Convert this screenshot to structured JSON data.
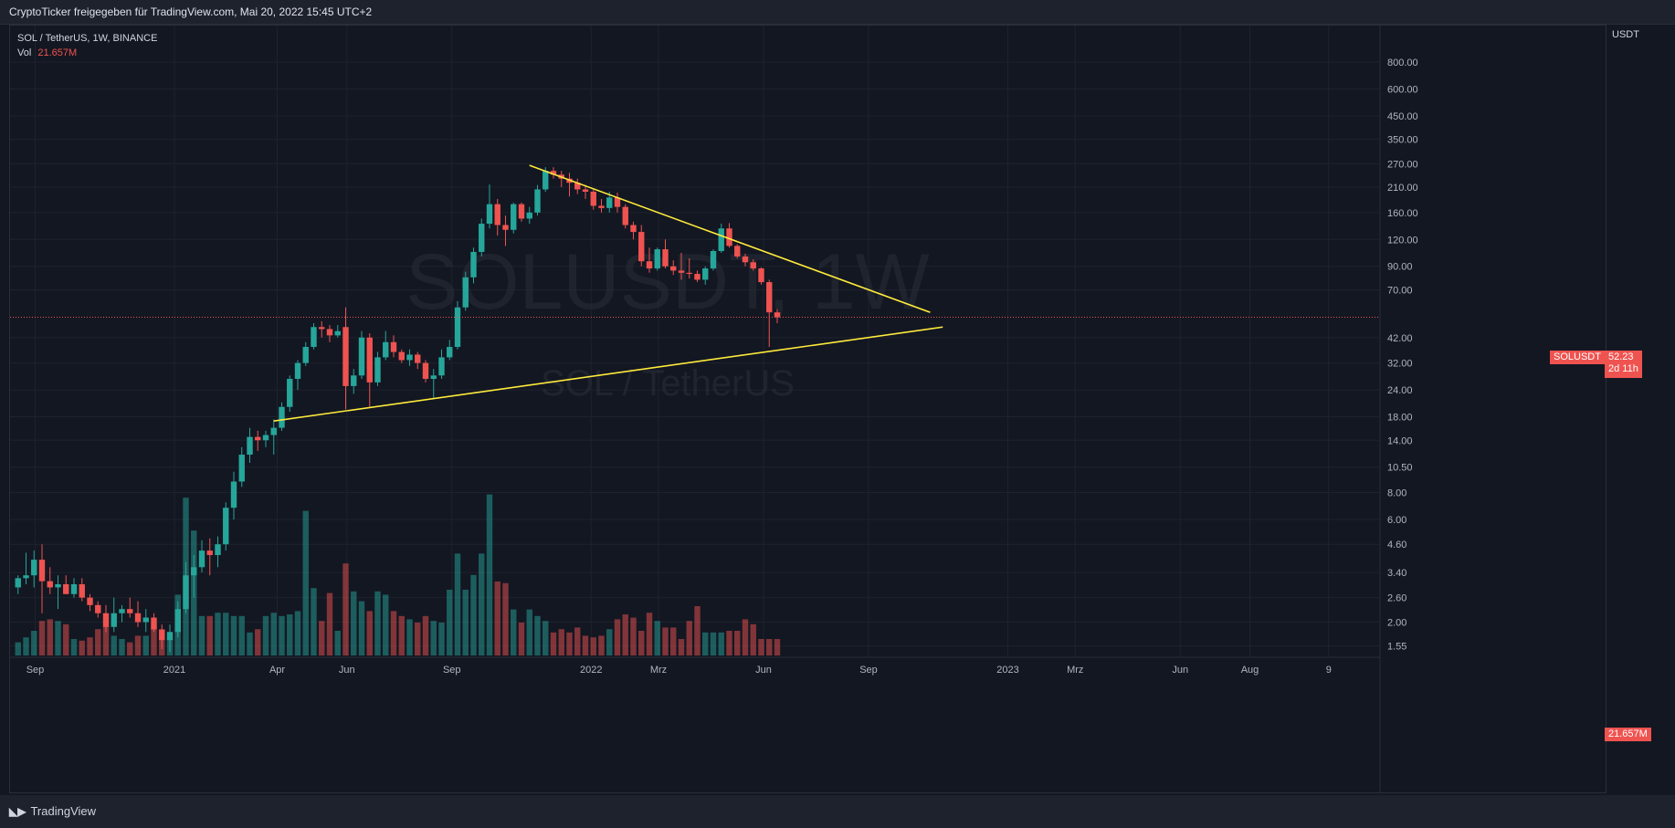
{
  "header": {
    "text": "CryptoTicker freigegeben für TradingView.com, Mai 20, 2022 15:45 UTC+2"
  },
  "legend": {
    "symbol_line": "SOL / TetherUS, 1W, BINANCE",
    "vol_label": "Vol",
    "vol_value": "21.657M"
  },
  "watermark": {
    "symbol": "SOLUSDT, 1W",
    "description": "SOL / TetherUS"
  },
  "price_axis": {
    "unit": "USDT",
    "labels": [
      "800.00",
      "600.00",
      "450.00",
      "350.00",
      "270.00",
      "210.00",
      "160.00",
      "120.00",
      "90.00",
      "70.00",
      "42.00",
      "32.00",
      "24.00",
      "18.00",
      "14.00",
      "10.50",
      "8.00",
      "6.00",
      "4.60",
      "3.40",
      "2.60",
      "2.00",
      "1.55"
    ]
  },
  "time_axis": {
    "labels": [
      "Sep",
      "2021",
      "Apr",
      "Jun",
      "Sep",
      "2022",
      "Mrz",
      "Jun",
      "Sep",
      "2023",
      "Mrz",
      "Jun",
      "Aug",
      "9"
    ]
  },
  "price_tag": {
    "symbol": "SOLUSDT",
    "price": "52.23",
    "countdown": "2d 11h"
  },
  "vol_tag": "21.657M",
  "footer": {
    "brand": "TradingView"
  },
  "colors": {
    "up": "#26a69a",
    "down": "#ef5350",
    "trendline": "#ffeb3b",
    "background": "#131722"
  },
  "chart_data": {
    "type": "candlestick",
    "scale": "log",
    "yrange": [
      1.4,
      900
    ],
    "x_start": "2020-08-10",
    "x_end": "2023-10-30",
    "candles": [
      {
        "t": "2020-08-17",
        "o": 2.9,
        "h": 3.3,
        "l": 2.7,
        "c": 3.2
      },
      {
        "t": "2020-08-24",
        "o": 3.2,
        "h": 4.2,
        "l": 3.0,
        "c": 3.3
      },
      {
        "t": "2020-08-31",
        "o": 3.3,
        "h": 4.3,
        "l": 2.9,
        "c": 3.9
      },
      {
        "t": "2020-09-07",
        "o": 3.9,
        "h": 4.6,
        "l": 2.2,
        "c": 3.1
      },
      {
        "t": "2020-09-14",
        "o": 3.1,
        "h": 3.6,
        "l": 2.7,
        "c": 2.9
      },
      {
        "t": "2020-09-21",
        "o": 2.9,
        "h": 3.3,
        "l": 2.3,
        "c": 3.0
      },
      {
        "t": "2020-09-28",
        "o": 3.0,
        "h": 3.3,
        "l": 2.7,
        "c": 2.7
      },
      {
        "t": "2020-10-05",
        "o": 2.7,
        "h": 3.2,
        "l": 2.6,
        "c": 3.0
      },
      {
        "t": "2020-10-12",
        "o": 3.0,
        "h": 3.2,
        "l": 2.5,
        "c": 2.6
      },
      {
        "t": "2020-10-19",
        "o": 2.6,
        "h": 2.7,
        "l": 2.25,
        "c": 2.4
      },
      {
        "t": "2020-10-26",
        "o": 2.4,
        "h": 2.5,
        "l": 2.1,
        "c": 2.2
      },
      {
        "t": "2020-11-02",
        "o": 2.2,
        "h": 2.4,
        "l": 1.8,
        "c": 1.9
      },
      {
        "t": "2020-11-09",
        "o": 1.9,
        "h": 2.6,
        "l": 1.8,
        "c": 2.2
      },
      {
        "t": "2020-11-16",
        "o": 2.2,
        "h": 2.4,
        "l": 2.0,
        "c": 2.3
      },
      {
        "t": "2020-11-23",
        "o": 2.3,
        "h": 2.6,
        "l": 2.1,
        "c": 2.2
      },
      {
        "t": "2020-11-30",
        "o": 2.2,
        "h": 2.5,
        "l": 1.9,
        "c": 2.0
      },
      {
        "t": "2020-12-07",
        "o": 2.0,
        "h": 2.3,
        "l": 1.8,
        "c": 2.1
      },
      {
        "t": "2020-12-14",
        "o": 2.1,
        "h": 2.2,
        "l": 1.8,
        "c": 1.85
      },
      {
        "t": "2020-12-21",
        "o": 1.85,
        "h": 1.95,
        "l": 1.5,
        "c": 1.65
      },
      {
        "t": "2020-12-28",
        "o": 1.65,
        "h": 1.95,
        "l": 1.45,
        "c": 1.8
      },
      {
        "t": "2021-01-04",
        "o": 1.8,
        "h": 2.5,
        "l": 1.7,
        "c": 2.3
      },
      {
        "t": "2021-01-11",
        "o": 2.3,
        "h": 3.8,
        "l": 2.2,
        "c": 3.3
      },
      {
        "t": "2021-01-18",
        "o": 3.3,
        "h": 4.1,
        "l": 2.6,
        "c": 3.6
      },
      {
        "t": "2021-01-25",
        "o": 3.6,
        "h": 4.8,
        "l": 3.4,
        "c": 4.3
      },
      {
        "t": "2021-02-01",
        "o": 4.3,
        "h": 4.9,
        "l": 3.3,
        "c": 4.1
      },
      {
        "t": "2021-02-08",
        "o": 4.1,
        "h": 5.0,
        "l": 3.6,
        "c": 4.6
      },
      {
        "t": "2021-02-15",
        "o": 4.6,
        "h": 7.2,
        "l": 4.3,
        "c": 6.8
      },
      {
        "t": "2021-02-22",
        "o": 6.8,
        "h": 10.0,
        "l": 6.0,
        "c": 9.0
      },
      {
        "t": "2021-03-01",
        "o": 9.0,
        "h": 13.0,
        "l": 8.5,
        "c": 12.0
      },
      {
        "t": "2021-03-08",
        "o": 12.0,
        "h": 16.0,
        "l": 11.0,
        "c": 14.5
      },
      {
        "t": "2021-03-15",
        "o": 14.5,
        "h": 15.5,
        "l": 12.5,
        "c": 14.0
      },
      {
        "t": "2021-03-22",
        "o": 14.0,
        "h": 15.5,
        "l": 13.0,
        "c": 14.8
      },
      {
        "t": "2021-03-29",
        "o": 14.8,
        "h": 17.5,
        "l": 12.0,
        "c": 16.0
      },
      {
        "t": "2021-04-05",
        "o": 16.0,
        "h": 21.0,
        "l": 15.5,
        "c": 20.0
      },
      {
        "t": "2021-04-12",
        "o": 20.0,
        "h": 28.0,
        "l": 19.0,
        "c": 27.0
      },
      {
        "t": "2021-04-19",
        "o": 27.0,
        "h": 33.0,
        "l": 24.0,
        "c": 32.0
      },
      {
        "t": "2021-04-26",
        "o": 32.0,
        "h": 40.0,
        "l": 31.0,
        "c": 38.0
      },
      {
        "t": "2021-05-03",
        "o": 38.0,
        "h": 49.0,
        "l": 37.0,
        "c": 47.0
      },
      {
        "t": "2021-05-10",
        "o": 47.0,
        "h": 50.0,
        "l": 42.0,
        "c": 46.0
      },
      {
        "t": "2021-05-17",
        "o": 46.0,
        "h": 48.0,
        "l": 40.0,
        "c": 43.0
      },
      {
        "t": "2021-05-24",
        "o": 43.0,
        "h": 48.0,
        "l": 42.0,
        "c": 45.0
      },
      {
        "t": "2021-05-31",
        "o": 47.0,
        "h": 58.0,
        "l": 19.5,
        "c": 25.0
      },
      {
        "t": "2021-06-07",
        "o": 25.0,
        "h": 30.0,
        "l": 23.0,
        "c": 28.0
      },
      {
        "t": "2021-06-14",
        "o": 28.0,
        "h": 45.0,
        "l": 27.0,
        "c": 42.0
      },
      {
        "t": "2021-06-21",
        "o": 42.0,
        "h": 44.0,
        "l": 20.0,
        "c": 26.0
      },
      {
        "t": "2021-06-28",
        "o": 26.0,
        "h": 36.0,
        "l": 25.0,
        "c": 34.0
      },
      {
        "t": "2021-07-05",
        "o": 34.0,
        "h": 45.0,
        "l": 33.0,
        "c": 40.0
      },
      {
        "t": "2021-07-12",
        "o": 40.0,
        "h": 43.0,
        "l": 34.0,
        "c": 36.0
      },
      {
        "t": "2021-07-19",
        "o": 36.0,
        "h": 37.0,
        "l": 32.0,
        "c": 33.0
      },
      {
        "t": "2021-07-26",
        "o": 33.0,
        "h": 37.0,
        "l": 31.0,
        "c": 35.0
      },
      {
        "t": "2021-08-02",
        "o": 35.0,
        "h": 36.0,
        "l": 30.0,
        "c": 32.0
      },
      {
        "t": "2021-08-09",
        "o": 32.0,
        "h": 33.0,
        "l": 26.0,
        "c": 27.0
      },
      {
        "t": "2021-08-16",
        "o": 27.0,
        "h": 30.0,
        "l": 22.0,
        "c": 28.0
      },
      {
        "t": "2021-08-23",
        "o": 28.0,
        "h": 37.0,
        "l": 27.0,
        "c": 34.0
      },
      {
        "t": "2021-08-30",
        "o": 34.0,
        "h": 41.0,
        "l": 33.0,
        "c": 38.0
      },
      {
        "t": "2021-09-06",
        "o": 38.0,
        "h": 62.0,
        "l": 37.0,
        "c": 58.0
      },
      {
        "t": "2021-09-13",
        "o": 58.0,
        "h": 85.0,
        "l": 56.0,
        "c": 80.0
      },
      {
        "t": "2021-09-20",
        "o": 80.0,
        "h": 110.0,
        "l": 75.0,
        "c": 105.0
      },
      {
        "t": "2021-09-27",
        "o": 105.0,
        "h": 150.0,
        "l": 100.0,
        "c": 142.0
      },
      {
        "t": "2021-10-04",
        "o": 142.0,
        "h": 216.0,
        "l": 135.0,
        "c": 175.0
      },
      {
        "t": "2021-10-11",
        "o": 175.0,
        "h": 185.0,
        "l": 125.0,
        "c": 140.0
      },
      {
        "t": "2021-10-18",
        "o": 140.0,
        "h": 155.0,
        "l": 112.0,
        "c": 133.0
      },
      {
        "t": "2021-10-25",
        "o": 133.0,
        "h": 178.0,
        "l": 128.0,
        "c": 175.0
      },
      {
        "t": "2021-11-01",
        "o": 175.0,
        "h": 178.0,
        "l": 145.0,
        "c": 150.0
      },
      {
        "t": "2021-11-08",
        "o": 150.0,
        "h": 170.0,
        "l": 142.0,
        "c": 160.0
      },
      {
        "t": "2021-11-15",
        "o": 160.0,
        "h": 215.0,
        "l": 155.0,
        "c": 205.0
      },
      {
        "t": "2021-11-22",
        "o": 205.0,
        "h": 260.0,
        "l": 200.0,
        "c": 250.0
      },
      {
        "t": "2021-11-29",
        "o": 250.0,
        "h": 260.0,
        "l": 230.0,
        "c": 240.0
      },
      {
        "t": "2021-12-06",
        "o": 240.0,
        "h": 250.0,
        "l": 210.0,
        "c": 230.0
      },
      {
        "t": "2021-12-13",
        "o": 230.0,
        "h": 245.0,
        "l": 190.0,
        "c": 220.0
      },
      {
        "t": "2021-12-20",
        "o": 220.0,
        "h": 230.0,
        "l": 195.0,
        "c": 205.0
      },
      {
        "t": "2021-12-27",
        "o": 205.0,
        "h": 215.0,
        "l": 185.0,
        "c": 200.0
      },
      {
        "t": "2022-01-03",
        "o": 200.0,
        "h": 205.0,
        "l": 165.0,
        "c": 172.0
      },
      {
        "t": "2022-01-10",
        "o": 172.0,
        "h": 185.0,
        "l": 160.0,
        "c": 168.0
      },
      {
        "t": "2022-01-17",
        "o": 168.0,
        "h": 200.0,
        "l": 160.0,
        "c": 188.0
      },
      {
        "t": "2022-01-24",
        "o": 188.0,
        "h": 198.0,
        "l": 160.0,
        "c": 170.0
      },
      {
        "t": "2022-01-31",
        "o": 170.0,
        "h": 175.0,
        "l": 135.0,
        "c": 140.0
      },
      {
        "t": "2022-02-07",
        "o": 140.0,
        "h": 145.0,
        "l": 120.0,
        "c": 130.0
      },
      {
        "t": "2022-02-14",
        "o": 130.0,
        "h": 140.0,
        "l": 90.0,
        "c": 95.0
      },
      {
        "t": "2022-02-21",
        "o": 95.0,
        "h": 110.0,
        "l": 84.0,
        "c": 88.0
      },
      {
        "t": "2022-02-28",
        "o": 88.0,
        "h": 110.0,
        "l": 86.0,
        "c": 108.0
      },
      {
        "t": "2022-03-07",
        "o": 108.0,
        "h": 120.0,
        "l": 88.0,
        "c": 90.0
      },
      {
        "t": "2022-03-14",
        "o": 90.0,
        "h": 96.0,
        "l": 82.0,
        "c": 86.0
      },
      {
        "t": "2022-03-21",
        "o": 86.0,
        "h": 104.0,
        "l": 78.0,
        "c": 84.0
      },
      {
        "t": "2022-03-28",
        "o": 84.0,
        "h": 98.0,
        "l": 79.0,
        "c": 83.0
      },
      {
        "t": "2022-04-04",
        "o": 83.0,
        "h": 86.0,
        "l": 76.0,
        "c": 78.0
      },
      {
        "t": "2022-04-11",
        "o": 78.0,
        "h": 90.0,
        "l": 74.0,
        "c": 88.0
      },
      {
        "t": "2022-04-18",
        "o": 88.0,
        "h": 108.0,
        "l": 86.0,
        "c": 106.0
      },
      {
        "t": "2022-04-25",
        "o": 106.0,
        "h": 142.0,
        "l": 104.0,
        "c": 135.0
      },
      {
        "t": "2022-05-02",
        "o": 135.0,
        "h": 143.0,
        "l": 110.0,
        "c": 112.0
      },
      {
        "t": "2022-05-09",
        "o": 112.0,
        "h": 114.0,
        "l": 98.0,
        "c": 100.0
      },
      {
        "t": "2022-05-16",
        "o": 100.0,
        "h": 103.0,
        "l": 90.0,
        "c": 94.0
      },
      {
        "t": "2022-05-23",
        "o": 94.0,
        "h": 97.0,
        "l": 86.0,
        "c": 88.0
      },
      {
        "t": "2022-05-30",
        "o": 88.0,
        "h": 89.0,
        "l": 74.0,
        "c": 76.0
      },
      {
        "t": "2022-06-06",
        "o": 76.0,
        "h": 78.0,
        "l": 38.0,
        "c": 55.0
      },
      {
        "t": "2022-06-13",
        "o": 55.0,
        "h": 57.0,
        "l": 49.0,
        "c": 52.23
      }
    ],
    "volume_pattern": [
      0.08,
      0.11,
      0.15,
      0.21,
      0.22,
      0.21,
      0.19,
      0.1,
      0.09,
      0.11,
      0.16,
      0.18,
      0.12,
      0.1,
      0.08,
      0.12,
      0.12,
      0.18,
      0.15,
      0.11,
      0.37,
      0.96,
      0.76,
      0.24,
      0.24,
      0.26,
      0.26,
      0.24,
      0.24,
      0.14,
      0.16,
      0.24,
      0.26,
      0.24,
      0.25,
      0.27,
      0.88,
      0.41,
      0.21,
      0.38,
      0.15,
      0.56,
      0.39,
      0.33,
      0.27,
      0.39,
      0.37,
      0.27,
      0.24,
      0.22,
      0.2,
      0.24,
      0.21,
      0.2,
      0.4,
      0.62,
      0.4,
      0.49,
      0.62,
      0.98,
      0.45,
      0.44,
      0.28,
      0.2,
      0.28,
      0.24,
      0.21,
      0.14,
      0.16,
      0.14,
      0.17,
      0.12,
      0.11,
      0.12,
      0.16,
      0.22,
      0.25,
      0.23,
      0.15,
      0.26,
      0.21,
      0.17,
      0.17,
      0.1,
      0.21,
      0.3,
      0.14,
      0.14,
      0.14,
      0.15,
      0.15,
      0.22,
      0.19
    ],
    "trendlines": [
      {
        "name": "descending-resistance",
        "p1": {
          "t": "2021-11-08",
          "price": 265
        },
        "p2": {
          "t": "2022-10-25",
          "price": 55
        }
      },
      {
        "name": "ascending-support",
        "p1": {
          "t": "2021-03-29",
          "price": 17.2
        },
        "p2": {
          "t": "2022-11-05",
          "price": 47
        }
      }
    ],
    "last_price": 52.23,
    "last_volume_label": "21.657M"
  }
}
